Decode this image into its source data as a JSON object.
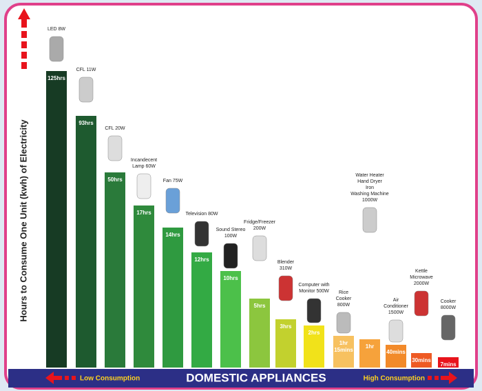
{
  "banner": {
    "title": "DOMESTIC APPLIANCES",
    "low": "Low Consumption",
    "high": "High Consumption"
  },
  "axis_label": "Hours to Consume One Unit (kwh) of Electricity",
  "items": [
    {
      "label": [
        "LED 8W"
      ],
      "time": [
        "125hrs"
      ]
    },
    {
      "label": [
        "CFL 11W"
      ],
      "time": [
        "93hrs"
      ]
    },
    {
      "label": [
        "CFL 20W"
      ],
      "time": [
        "50hrs"
      ]
    },
    {
      "label": [
        "Incandecent",
        "Lamp 60W"
      ],
      "time": [
        "17hrs"
      ]
    },
    {
      "label": [
        "Fan 75W"
      ],
      "time": [
        "14hrs"
      ]
    },
    {
      "label": [
        "Television 80W"
      ],
      "time": [
        "12hrs"
      ]
    },
    {
      "label": [
        "Sound Stereo",
        "100W"
      ],
      "time": [
        "10hrs"
      ]
    },
    {
      "label": [
        "Fridge/Freezer",
        "200W"
      ],
      "time": [
        "5hrs"
      ]
    },
    {
      "label": [
        "Blender",
        "310W"
      ],
      "time": [
        "3hrs"
      ]
    },
    {
      "label": [
        "Computer with",
        "Monitor 500W"
      ],
      "time": [
        "2hrs"
      ]
    },
    {
      "label": [
        "Rice",
        "Cooker",
        "800W"
      ],
      "time": [
        "1hr",
        "15mins"
      ]
    },
    {
      "label": [
        "Water Heater",
        "Hand Dryer",
        "Iron",
        "Washing Machine",
        "1000W"
      ],
      "time": [
        "1hr"
      ]
    },
    {
      "label": [
        "Air",
        "Conditioner",
        "1500W"
      ],
      "time": [
        "40mins"
      ]
    },
    {
      "label": [
        "Kettle",
        "Microwave",
        "2000W"
      ],
      "time": [
        "30mins"
      ]
    },
    {
      "label": [
        "Cooker",
        "8000W"
      ],
      "time": [
        "7mins"
      ]
    }
  ]
}
